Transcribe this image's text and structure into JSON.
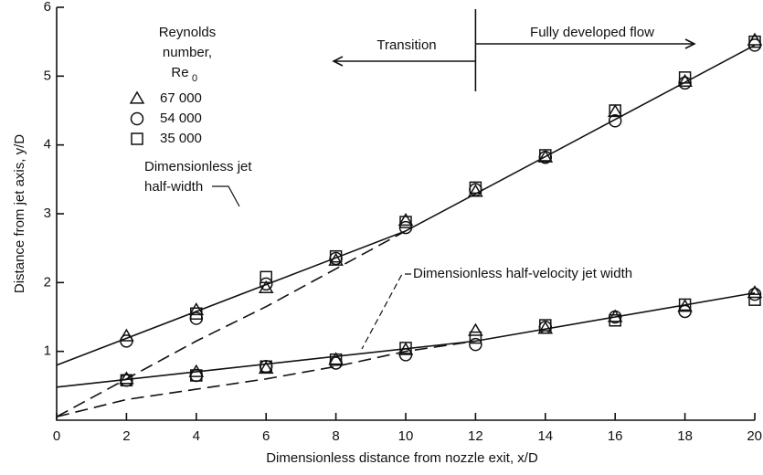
{
  "chart_data": {
    "type": "scatter",
    "xlabel": "Dimensionless distance from nozzle exit,  x/D",
    "ylabel": "Distance from jet axis,  y/D",
    "xlim": [
      0,
      20
    ],
    "ylim": [
      0,
      6
    ],
    "xticks": [
      0,
      2,
      4,
      6,
      8,
      10,
      12,
      14,
      16,
      18,
      20
    ],
    "yticks": [
      1,
      2,
      3,
      4,
      5,
      6
    ],
    "legend_title": [
      "Reynolds",
      "number,"
    ],
    "legend_symbol": {
      "base": "Re",
      "sub": "0"
    },
    "x": [
      2,
      4,
      6,
      8,
      10,
      12,
      14,
      16,
      18,
      20
    ],
    "series": [
      {
        "name": "67 000",
        "marker": "triangle",
        "half_width": [
          1.22,
          1.6,
          1.92,
          2.32,
          2.9,
          3.32,
          3.82,
          4.48,
          4.92,
          5.52
        ],
        "half_velocity_width": [
          0.6,
          0.7,
          0.75,
          0.88,
          1.02,
          1.3,
          1.33,
          1.5,
          1.65,
          1.85
        ]
      },
      {
        "name": "54 000",
        "marker": "circle",
        "half_width": [
          1.15,
          1.48,
          1.98,
          2.35,
          2.8,
          3.35,
          3.82,
          4.35,
          4.9,
          5.45
        ],
        "half_velocity_width": [
          0.58,
          0.65,
          0.78,
          0.83,
          0.95,
          1.1,
          1.35,
          1.5,
          1.58,
          1.83
        ]
      },
      {
        "name": "35 000",
        "marker": "square",
        "half_width": [
          null,
          1.55,
          2.08,
          2.38,
          2.88,
          3.38,
          3.85,
          4.5,
          4.98,
          5.5
        ],
        "half_velocity_width": [
          0.58,
          0.65,
          0.78,
          0.88,
          1.05,
          1.2,
          1.38,
          1.45,
          1.68,
          1.75
        ]
      }
    ],
    "lines": [
      {
        "style": "solid",
        "x": [
          0,
          10,
          20
        ],
        "y": [
          0.8,
          2.75,
          5.45
        ]
      },
      {
        "style": "solid",
        "x": [
          0,
          12,
          20
        ],
        "y": [
          0.48,
          1.15,
          1.85
        ]
      },
      {
        "style": "dashed",
        "x": [
          0,
          2,
          4,
          6,
          8,
          10
        ],
        "y": [
          0.05,
          0.6,
          1.15,
          1.65,
          2.2,
          2.75
        ]
      },
      {
        "style": "dashed",
        "x": [
          0,
          2,
          4,
          6,
          8,
          10,
          12
        ],
        "y": [
          0.05,
          0.3,
          0.45,
          0.6,
          0.78,
          1.0,
          1.15
        ]
      }
    ],
    "boundary_x": 12,
    "annotations": {
      "transition": "Transition",
      "developed": "Fully developed flow",
      "half_width": [
        "Dimensionless jet",
        "half-width"
      ],
      "half_velocity": "Dimensionless half-velocity jet width"
    }
  }
}
